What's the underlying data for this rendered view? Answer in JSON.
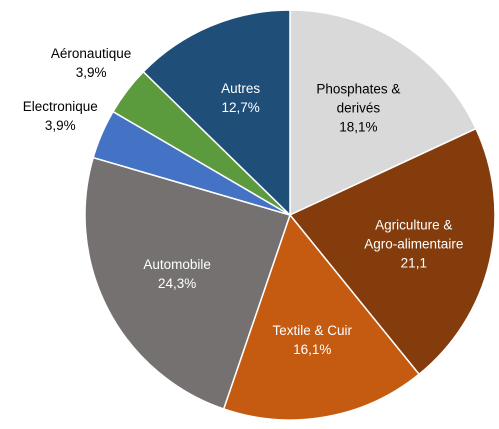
{
  "chart_data": {
    "type": "pie",
    "categories": [
      "Phosphates & derivés",
      "Agriculture & Agro-alimentaire",
      "Textile & Cuir",
      "Automobile",
      "Electronique",
      "Aéronautique",
      "Autres"
    ],
    "values": [
      18.1,
      21.1,
      16.1,
      24.3,
      3.9,
      3.9,
      12.7
    ],
    "value_labels": [
      "18,1%",
      "21,1",
      "16,1%",
      "24,3%",
      "3,9%",
      "3,9%",
      "12,7%"
    ],
    "colors": [
      "#d9d9d9",
      "#843c0c",
      "#c55a11",
      "#767171",
      "#4472c4",
      "#5b9b3d",
      "#1f4e79"
    ]
  }
}
